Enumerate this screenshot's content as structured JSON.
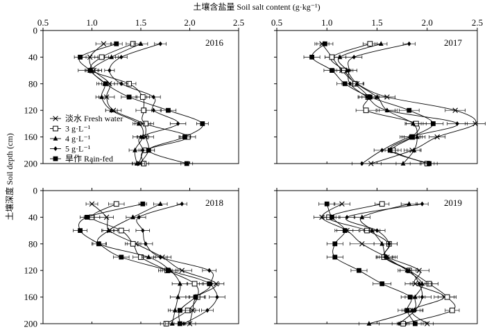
{
  "chart_data": {
    "type": "line",
    "title": "土壤含盐量 Soil salt content (g·kg⁻¹)",
    "ylabel": "土壤深度 Soil depth (cm)",
    "xlim": [
      0.5,
      2.5
    ],
    "ylim": [
      0,
      200
    ],
    "x_ticks": [
      "0.5",
      "1.0",
      "1.5",
      "2.0",
      "2.5"
    ],
    "y_ticks": [
      "0",
      "40",
      "80",
      "120",
      "160",
      "200"
    ],
    "depths": [
      20,
      40,
      60,
      80,
      100,
      120,
      140,
      160,
      180,
      200
    ],
    "legend": [
      {
        "label": "淡水 Fresh water",
        "marker": "x"
      },
      {
        "label": "3 g·L⁻¹",
        "marker": "square-open"
      },
      {
        "label": "4 g·L⁻¹",
        "marker": "triangle"
      },
      {
        "label": "5 g·L⁻¹",
        "marker": "diamond"
      },
      {
        "label": "旱作 Rain-fed",
        "marker": "square"
      }
    ],
    "panels": [
      {
        "year": "2016",
        "series": [
          {
            "marker": "x",
            "values": [
              1.12,
              0.98,
              1.02,
              1.18,
              1.15,
              1.22,
              1.52,
              1.55,
              1.58,
              1.49
            ],
            "errors": [
              0.08,
              0.08,
              0.08,
              0.08,
              0.08,
              0.08,
              0.08,
              0.08,
              0.06,
              0.05
            ]
          },
          {
            "marker": "square-open",
            "values": [
              1.42,
              1.1,
              1.0,
              1.38,
              1.52,
              1.53,
              1.55,
              1.98,
              1.54,
              1.53
            ],
            "errors": [
              0.07,
              0.07,
              0.07,
              0.07,
              0.07,
              0.08,
              0.08,
              0.08,
              0.06,
              0.05
            ]
          },
          {
            "marker": "triangle",
            "values": [
              1.5,
              1.2,
              1.0,
              1.13,
              1.1,
              1.2,
              1.48,
              1.52,
              1.44,
              1.46
            ],
            "errors": [
              0.07,
              0.07,
              0.06,
              0.06,
              0.06,
              0.06,
              0.06,
              0.06,
              0.06,
              0.05
            ]
          },
          {
            "marker": "diamond",
            "values": [
              1.7,
              1.3,
              1.18,
              1.3,
              1.63,
              1.63,
              1.88,
              1.5,
              1.52,
              1.48
            ],
            "errors": [
              0.06,
              0.06,
              0.05,
              0.07,
              0.07,
              0.08,
              0.08,
              0.08,
              0.07,
              0.06
            ]
          },
          {
            "marker": "square",
            "values": [
              1.25,
              0.88,
              0.98,
              1.14,
              1.38,
              1.78,
              2.13,
              1.95,
              1.58,
              1.97
            ],
            "errors": [
              0.06,
              0.06,
              0.12,
              0.09,
              0.08,
              0.08,
              0.06,
              0.06,
              0.06,
              0.06
            ]
          }
        ]
      },
      {
        "year": "2017",
        "series": [
          {
            "marker": "x",
            "values": [
              0.95,
              1.05,
              1.15,
              1.3,
              1.6,
              2.28,
              2.48,
              2.1,
              1.85,
              1.44
            ],
            "errors": [
              0.07,
              0.07,
              0.07,
              0.07,
              0.08,
              0.1,
              0.1,
              0.08,
              0.08,
              0.1
            ]
          },
          {
            "marker": "square-open",
            "values": [
              1.43,
              1.05,
              1.17,
              1.28,
              1.41,
              1.39,
              1.89,
              1.85,
              1.66,
              2.0
            ],
            "errors": [
              0.07,
              0.07,
              0.07,
              0.08,
              0.1,
              0.1,
              0.1,
              0.08,
              0.08,
              0.07
            ]
          },
          {
            "marker": "triangle",
            "values": [
              1.54,
              1.13,
              1.2,
              1.3,
              1.5,
              1.6,
              1.86,
              1.9,
              1.87,
              1.76
            ],
            "errors": [
              0.06,
              0.06,
              0.06,
              0.06,
              0.08,
              0.08,
              0.08,
              0.08,
              0.07,
              0.07
            ]
          },
          {
            "marker": "diamond",
            "values": [
              1.82,
              1.27,
              1.22,
              1.23,
              1.4,
              1.6,
              2.3,
              1.83,
              1.55,
              1.35
            ],
            "errors": [
              0.06,
              0.08,
              0.08,
              0.08,
              0.08,
              0.1,
              0.1,
              0.1,
              0.08,
              0.1
            ]
          },
          {
            "marker": "square",
            "values": [
              0.98,
              0.85,
              1.05,
              1.18,
              1.43,
              1.82,
              2.06,
              1.85,
              1.63,
              2.02
            ],
            "errors": [
              0.08,
              0.08,
              0.08,
              0.08,
              0.08,
              0.1,
              0.1,
              0.1,
              0.08,
              0.08
            ]
          }
        ]
      },
      {
        "year": "2018",
        "series": [
          {
            "marker": "x",
            "values": [
              1.0,
              1.15,
              1.18,
              1.45,
              1.72,
              1.92,
              2.27,
              2.07,
              2.03,
              2.0
            ],
            "errors": [
              0.06,
              0.07,
              0.08,
              0.09,
              0.09,
              0.1,
              0.08,
              0.08,
              0.07,
              0.06
            ]
          },
          {
            "marker": "square-open",
            "values": [
              1.25,
              1.0,
              1.3,
              1.42,
              1.5,
              1.77,
              2.05,
              2.08,
              1.98,
              1.76
            ],
            "errors": [
              0.08,
              0.08,
              0.08,
              0.08,
              0.08,
              0.09,
              0.08,
              0.08,
              0.08,
              0.06
            ]
          },
          {
            "marker": "triangle",
            "values": [
              1.7,
              1.42,
              1.17,
              1.08,
              1.58,
              1.8,
              1.9,
              1.88,
              1.85,
              1.82
            ],
            "errors": [
              0.07,
              0.07,
              0.06,
              0.07,
              0.07,
              0.08,
              0.08,
              0.08,
              0.07,
              0.07
            ]
          },
          {
            "marker": "diamond",
            "values": [
              1.92,
              1.48,
              1.52,
              1.55,
              1.7,
              2.2,
              2.22,
              2.28,
              2.18,
              1.94
            ],
            "errors": [
              0.05,
              0.07,
              0.07,
              0.07,
              0.07,
              0.07,
              0.08,
              0.08,
              0.06,
              0.06
            ]
          },
          {
            "marker": "square",
            "values": [
              1.52,
              0.95,
              0.88,
              1.07,
              1.3,
              1.78,
              2.2,
              2.06,
              1.9,
              1.9
            ],
            "errors": [
              0.04,
              0.07,
              0.07,
              0.07,
              0.08,
              0.08,
              0.1,
              0.1,
              0.1,
              0.06
            ]
          }
        ]
      },
      {
        "year": "2019",
        "series": [
          {
            "marker": "x",
            "values": [
              1.15,
              0.95,
              1.2,
              1.35,
              1.6,
              1.92,
              1.88,
              2.17,
              1.85,
              2.0
            ],
            "errors": [
              0.08,
              0.08,
              0.12,
              0.12,
              0.1,
              0.1,
              0.1,
              0.1,
              0.08,
              0.06
            ]
          },
          {
            "marker": "square-open",
            "values": [
              1.55,
              1.02,
              1.4,
              1.62,
              1.57,
              1.82,
              2.02,
              2.2,
              2.25,
              1.76
            ],
            "errors": [
              0.07,
              0.07,
              0.07,
              0.08,
              0.08,
              0.09,
              0.09,
              0.09,
              0.07,
              0.06
            ]
          },
          {
            "marker": "triangle",
            "values": [
              1.82,
              1.35,
              1.45,
              1.55,
              1.6,
              1.8,
              1.95,
              1.88,
              1.85,
              1.42
            ],
            "errors": [
              0.08,
              0.08,
              0.08,
              0.08,
              0.08,
              0.09,
              0.1,
              0.1,
              0.1,
              0.1
            ]
          },
          {
            "marker": "diamond",
            "values": [
              1.95,
              1.2,
              1.5,
              1.62,
              1.58,
              1.82,
              1.92,
              1.95,
              1.88,
              1.72
            ],
            "errors": [
              0.06,
              0.08,
              0.08,
              0.08,
              0.08,
              0.09,
              0.09,
              0.09,
              0.08,
              0.07
            ]
          },
          {
            "marker": "square",
            "values": [
              1.0,
              1.05,
              1.18,
              1.08,
              1.08,
              1.32,
              1.55,
              1.83,
              1.8,
              1.88
            ],
            "errors": [
              0.08,
              0.08,
              0.08,
              0.08,
              0.08,
              0.08,
              0.09,
              0.09,
              0.09,
              0.08
            ]
          }
        ]
      }
    ]
  }
}
